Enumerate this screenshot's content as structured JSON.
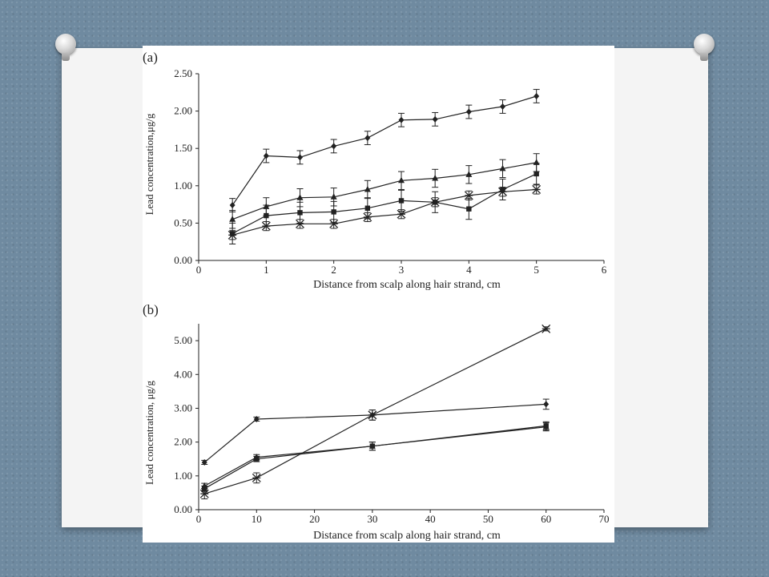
{
  "chart_data": [
    {
      "type": "line",
      "panel_label": "(a)",
      "xlabel": "Distance from scalp along hair strand, cm",
      "ylabel": "Lead concentration,μg/g",
      "xlim": [
        0,
        6
      ],
      "ylim": [
        0,
        2.5
      ],
      "xticks": [
        "0",
        "1",
        "2",
        "3",
        "4",
        "5",
        "6"
      ],
      "yticks": [
        "0.00",
        "0.50",
        "1.00",
        "1.50",
        "2.00",
        "2.50"
      ],
      "grid": false,
      "series": [
        {
          "marker": "diamond",
          "x": [
            0.5,
            1,
            1.5,
            2,
            2.5,
            3,
            3.5,
            4,
            4.5,
            5
          ],
          "values": [
            0.74,
            1.4,
            1.38,
            1.53,
            1.64,
            1.88,
            1.89,
            1.99,
            2.06,
            2.2
          ],
          "errors": [
            0.09,
            0.09,
            0.09,
            0.09,
            0.09,
            0.09,
            0.09,
            0.09,
            0.09,
            0.09
          ]
        },
        {
          "marker": "triangle",
          "x": [
            0.5,
            1,
            1.5,
            2,
            2.5,
            3,
            3.5,
            4,
            4.5,
            5
          ],
          "values": [
            0.55,
            0.72,
            0.84,
            0.85,
            0.95,
            1.07,
            1.1,
            1.15,
            1.23,
            1.31
          ],
          "errors": [
            0.12,
            0.12,
            0.12,
            0.12,
            0.12,
            0.12,
            0.12,
            0.12,
            0.12,
            0.12
          ]
        },
        {
          "marker": "square",
          "x": [
            0.5,
            1,
            1.5,
            2,
            2.5,
            3,
            3.5,
            4,
            4.5,
            5
          ],
          "values": [
            0.36,
            0.6,
            0.64,
            0.65,
            0.7,
            0.8,
            0.78,
            0.69,
            0.95,
            1.16
          ],
          "errors": [
            0.14,
            0.14,
            0.14,
            0.14,
            0.14,
            0.14,
            0.14,
            0.14,
            0.14,
            0.14
          ]
        },
        {
          "marker": "star",
          "x": [
            0.5,
            1,
            1.5,
            2,
            2.5,
            3,
            3.5,
            4,
            4.5,
            5
          ],
          "values": [
            0.34,
            0.46,
            0.49,
            0.49,
            0.58,
            0.62,
            0.78,
            0.87,
            0.92,
            0.95
          ],
          "errors": [
            0.06,
            0.06,
            0.06,
            0.06,
            0.06,
            0.06,
            0.06,
            0.06,
            0.06,
            0.06
          ]
        }
      ]
    },
    {
      "type": "line",
      "panel_label": "(b)",
      "xlabel": "Distance from scalp along hair strand, cm",
      "ylabel": "Lead concentration, μg/g",
      "xlim": [
        0,
        70
      ],
      "ylim": [
        0,
        5.5
      ],
      "xticks": [
        "0",
        "10",
        "20",
        "30",
        "40",
        "50",
        "60",
        "70"
      ],
      "yticks": [
        "0.00",
        "1.00",
        "2.00",
        "3.00",
        "4.00",
        "5.00"
      ],
      "grid": false,
      "series": [
        {
          "marker": "diamond",
          "x": [
            1,
            10,
            30,
            60
          ],
          "values": [
            1.4,
            2.68,
            2.8,
            3.12
          ],
          "errors": [
            0.06,
            0.06,
            0.15,
            0.15
          ]
        },
        {
          "marker": "star",
          "x": [
            1,
            10,
            30,
            60
          ],
          "values": [
            0.47,
            0.94,
            2.8,
            5.35
          ],
          "errors": [
            0.15,
            0.15,
            0.15,
            0.06
          ]
        },
        {
          "marker": "triangle",
          "x": [
            1,
            10,
            30,
            60
          ],
          "values": [
            0.7,
            1.55,
            1.88,
            2.45
          ],
          "errors": [
            0.08,
            0.08,
            0.12,
            0.12
          ]
        },
        {
          "marker": "square",
          "x": [
            1,
            10,
            30,
            60
          ],
          "values": [
            0.62,
            1.5,
            1.88,
            2.48
          ],
          "errors": [
            0.08,
            0.08,
            0.12,
            0.12
          ]
        }
      ]
    }
  ],
  "colors": {
    "slide_background": "#6f8aa0",
    "card": "#f4f4f4",
    "ink": "#222222"
  }
}
